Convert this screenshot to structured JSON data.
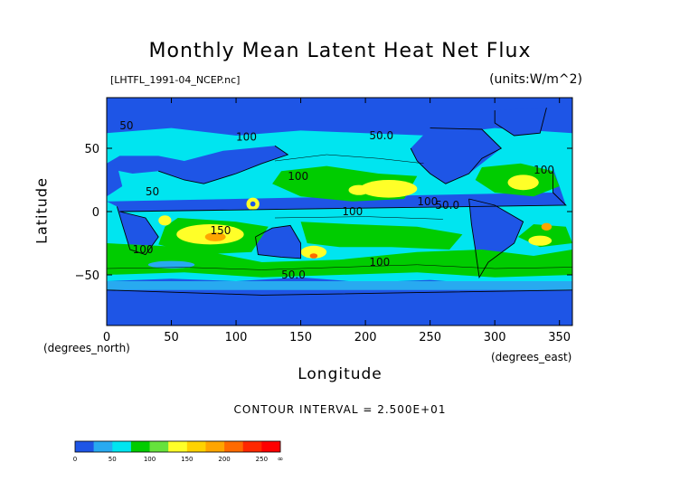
{
  "header": {
    "title": "Monthly Mean Latent Heat Net Flux",
    "file": "[LHTFL_1991-04_NCEP.nc]",
    "units": "(units:W/m^2)"
  },
  "axes": {
    "x_label": "Longitude",
    "x_unit_note": "(degrees_east)",
    "y_label": "Latitude",
    "y_unit_note": "(degrees_north)"
  },
  "footer": {
    "contour_interval": "CONTOUR INTERVAL = 2.500E+01"
  },
  "chart_data": {
    "type": "heatmap",
    "title": "Monthly Mean Latent Heat Net Flux",
    "xlabel": "Longitude",
    "ylabel": "Latitude",
    "xlim": [
      0,
      360
    ],
    "ylim": [
      -90,
      90
    ],
    "x_ticks": [
      0,
      50,
      100,
      150,
      200,
      250,
      300,
      350
    ],
    "y_ticks": [
      -50,
      0,
      50
    ],
    "contour_labels": [
      {
        "lon": 10,
        "lat": 65,
        "text": "50"
      },
      {
        "lon": 100,
        "lat": 56,
        "text": "100"
      },
      {
        "lon": 203,
        "lat": 57,
        "text": "50.0"
      },
      {
        "lon": 330,
        "lat": 30,
        "text": "100"
      },
      {
        "lon": 30,
        "lat": 13,
        "text": "50"
      },
      {
        "lon": 140,
        "lat": 25,
        "text": "100"
      },
      {
        "lon": 240,
        "lat": 5,
        "text": "100"
      },
      {
        "lon": 254,
        "lat": 2,
        "text": "50.0"
      },
      {
        "lon": 182,
        "lat": -3,
        "text": "100"
      },
      {
        "lon": 80,
        "lat": -18,
        "text": "150"
      },
      {
        "lon": 20,
        "lat": -33,
        "text": "100"
      },
      {
        "lon": 203,
        "lat": -43,
        "text": "100"
      },
      {
        "lon": 135,
        "lat": -53,
        "text": "50.0"
      }
    ],
    "colorbar": {
      "levels": [
        0,
        50,
        100,
        150,
        200,
        250
      ],
      "end_label": "∞",
      "colors": [
        "#1e55e6",
        "#28aaf0",
        "#00e5f0",
        "#00cc00",
        "#66e23c",
        "#ffff28",
        "#ffd200",
        "#ffa500",
        "#ff6a00",
        "#ff2800",
        "#ff0000"
      ]
    }
  }
}
